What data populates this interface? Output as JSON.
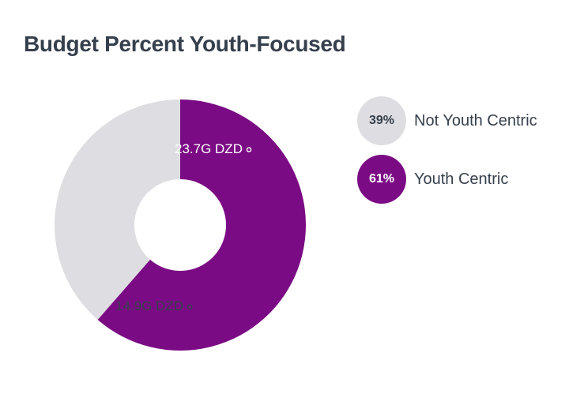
{
  "title": "Budget Percent Youth-Focused",
  "chart_data": {
    "type": "pie",
    "subtype": "donut",
    "title": "Budget Percent Youth-Focused",
    "start_angle_deg": 270,
    "direction": "clockwise",
    "legend_position": "right",
    "slices": [
      {
        "name": "Youth Centric",
        "value": 23.7,
        "percent": 61,
        "percent_label": "61%",
        "value_label": "23.7G DZD",
        "color": "#7b0b84",
        "label_color": "#ffffff"
      },
      {
        "name": "Not Youth Centric",
        "value": 14.9,
        "percent": 39,
        "percent_label": "39%",
        "value_label": "14.9G DZD",
        "color": "#dedee2",
        "label_color": "#36404d"
      }
    ],
    "legend_order": [
      1,
      0
    ]
  }
}
